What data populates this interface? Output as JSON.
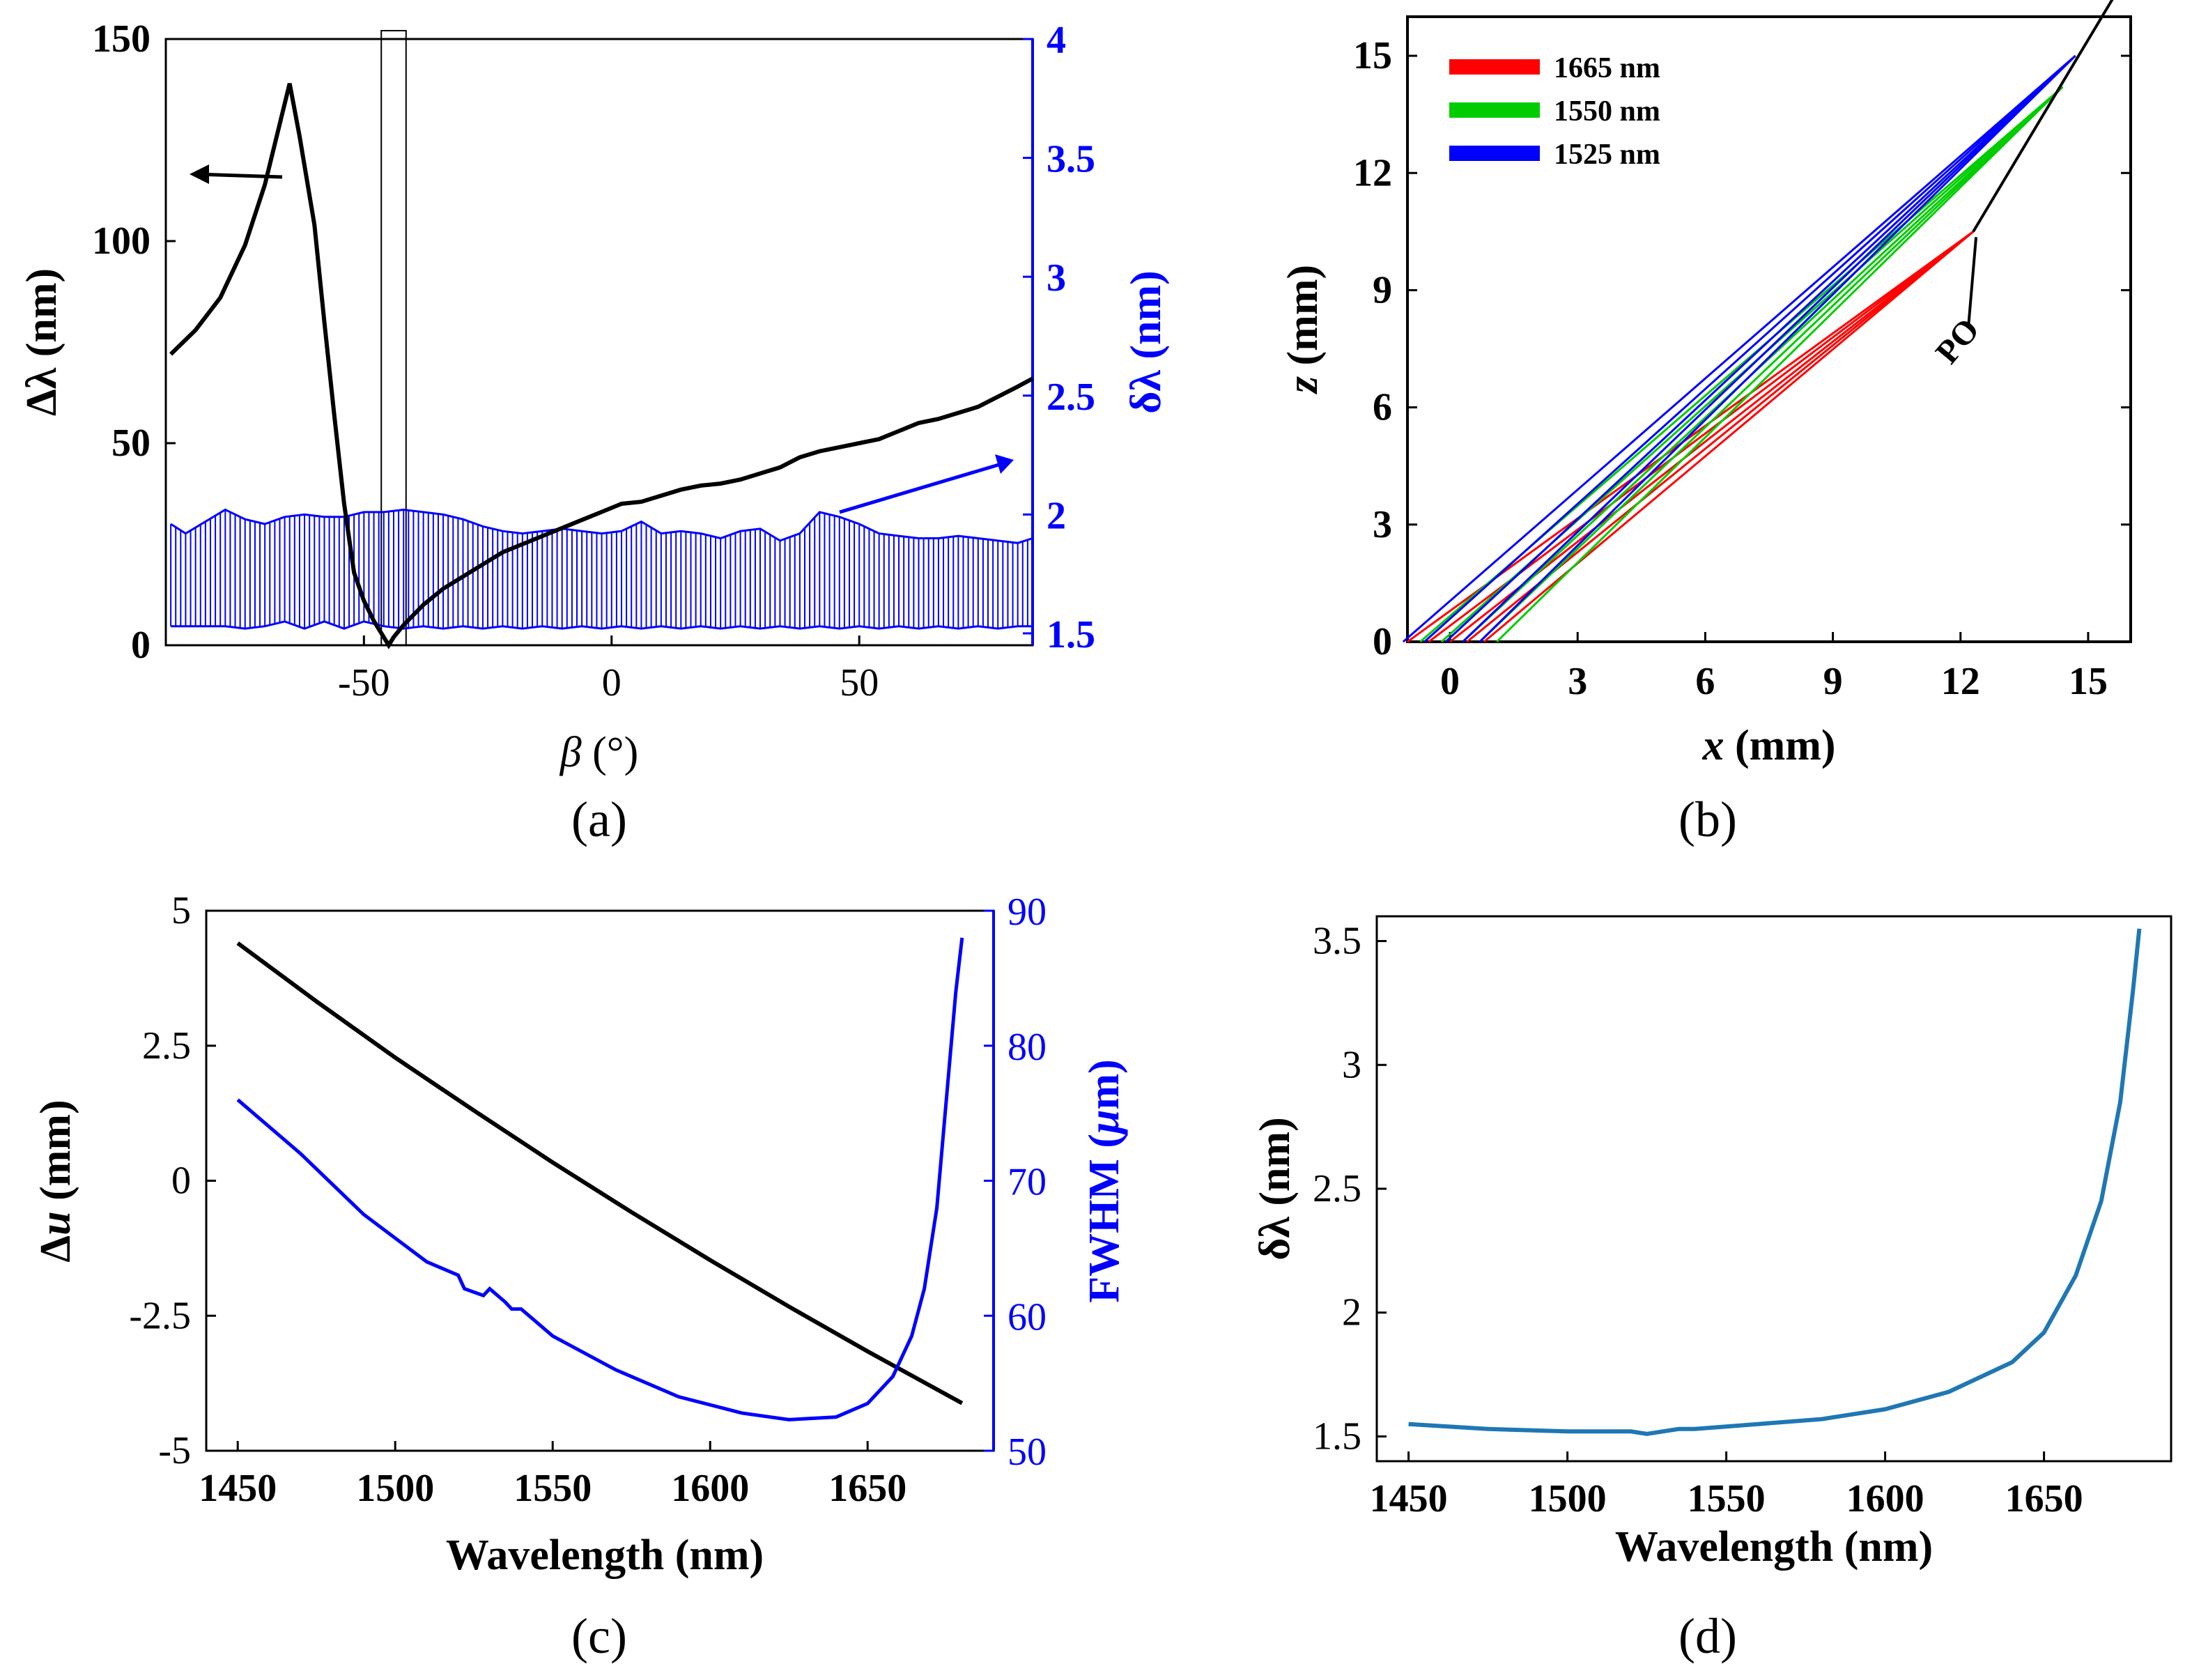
{
  "chart_data": [
    {
      "id": "a",
      "type": "line",
      "caption": "(a)",
      "xlabel_sym": "β",
      "xlabel_unit": " (°)",
      "ylabel_left": "Δλ (nm)",
      "ylabel_right": "δλ (nm)",
      "xlim": [
        -90,
        85
      ],
      "ylim_left": [
        0,
        150
      ],
      "ylim_right": [
        1.45,
        4
      ],
      "xticks": [
        -50,
        0,
        50
      ],
      "yticks_left": [
        0,
        50,
        100,
        150
      ],
      "yticks_right": [
        "1.5",
        "2",
        "2.5",
        "3",
        "3.5",
        "4"
      ],
      "colors": {
        "left": "#000000",
        "right": "#0000ff"
      },
      "series": [
        {
          "name": "Δλ",
          "axis": "left",
          "x": [
            -89,
            -84,
            -79,
            -74,
            -70,
            -67,
            -65,
            -63,
            -60,
            -58,
            -56,
            -54,
            -52,
            -50,
            -48,
            -46,
            -45,
            -44,
            -42,
            -38,
            -34,
            -30,
            -26,
            -22,
            -18,
            -14,
            -10,
            -6,
            -2,
            2,
            6,
            10,
            14,
            18,
            22,
            26,
            30,
            34,
            38,
            42,
            46,
            50,
            54,
            58,
            62,
            66,
            70,
            74,
            78,
            82,
            85
          ],
          "y": [
            72,
            78,
            86,
            99,
            114,
            129,
            139,
            126,
            104,
            80,
            57,
            35,
            18,
            11,
            6,
            2,
            0,
            2,
            5,
            10,
            14,
            17,
            20,
            23,
            25,
            27,
            29,
            31,
            33,
            35,
            35.5,
            37,
            38.5,
            39.5,
            40,
            41,
            42.5,
            44,
            46.5,
            48,
            49,
            50,
            51,
            53,
            55,
            56,
            57.5,
            59,
            61.5,
            64,
            66
          ]
        },
        {
          "name": "δλ",
          "axis": "right",
          "x": [
            -89,
            -86,
            -82,
            -78,
            -74,
            -70,
            -66,
            -62,
            -58,
            -54,
            -50,
            -46,
            -42,
            -38,
            -34,
            -30,
            -26,
            -22,
            -18,
            -14,
            -10,
            -6,
            -2,
            2,
            6,
            10,
            14,
            18,
            22,
            26,
            30,
            34,
            38,
            42,
            46,
            50,
            54,
            58,
            62,
            66,
            70,
            74,
            78,
            82,
            85
          ],
          "upper": [
            1.96,
            1.92,
            1.97,
            2.02,
            1.98,
            1.96,
            1.99,
            2.0,
            1.99,
            1.99,
            2.01,
            2.01,
            2.02,
            2.01,
            2.0,
            1.98,
            1.95,
            1.93,
            1.92,
            1.93,
            1.94,
            1.93,
            1.92,
            1.93,
            1.97,
            1.92,
            1.93,
            1.92,
            1.9,
            1.93,
            1.94,
            1.89,
            1.92,
            2.01,
            1.99,
            1.96,
            1.92,
            1.91,
            1.9,
            1.9,
            1.91,
            1.9,
            1.89,
            1.88,
            1.9
          ],
          "lower": [
            1.53,
            1.53,
            1.53,
            1.53,
            1.52,
            1.53,
            1.55,
            1.52,
            1.55,
            1.52,
            1.55,
            1.53,
            1.52,
            1.53,
            1.52,
            1.53,
            1.52,
            1.53,
            1.52,
            1.53,
            1.52,
            1.53,
            1.52,
            1.53,
            1.52,
            1.53,
            1.52,
            1.53,
            1.52,
            1.53,
            1.52,
            1.53,
            1.52,
            1.53,
            1.52,
            1.53,
            1.52,
            1.53,
            1.52,
            1.53,
            1.52,
            1.53,
            1.52,
            1.53,
            1.53
          ]
        }
      ],
      "annotations": {
        "highlight_x": [
          -46.5,
          -41.5
        ],
        "left_arrow": "points to Δλ axis",
        "right_arrow": "points to δλ axis"
      }
    },
    {
      "id": "b",
      "type": "line",
      "caption": "(b)",
      "xlabel_sym": "x",
      "xlabel_unit": " (mm)",
      "ylabel_sym": "z",
      "ylabel_unit": " (mm)",
      "xlim": [
        -1,
        16
      ],
      "ylim": [
        0,
        16
      ],
      "xticks": [
        0,
        3,
        6,
        9,
        12,
        15
      ],
      "yticks": [
        0,
        3,
        6,
        9,
        12,
        15
      ],
      "legend": [
        {
          "label": "1665 nm",
          "color": "#ff0000"
        },
        {
          "label": "1550 nm",
          "color": "#00cc00"
        },
        {
          "label": "1525 nm",
          "color": "#0000ff"
        }
      ],
      "rays": [
        {
          "color": "#ff0000",
          "starts": [
            -1.0,
            -0.5,
            0.0,
            0.4,
            0.8
          ],
          "end": [
            12.3,
            10.5
          ]
        },
        {
          "color": "#00cc00",
          "starts": [
            -0.7,
            -0.2,
            0.3,
            0.7,
            1.1
          ],
          "end": [
            14.4,
            14.2
          ]
        },
        {
          "color": "#0000ff",
          "starts": [
            -1.1,
            -0.6,
            -0.1,
            0.3,
            0.7
          ],
          "end": [
            14.7,
            15.0
          ]
        }
      ],
      "po_line": {
        "from": [
          15.6,
          16.5
        ],
        "to": [
          12.3,
          10.5
        ]
      },
      "po_label": "PO"
    },
    {
      "id": "c",
      "type": "line",
      "caption": "(c)",
      "xlabel": "Wavelength (nm)",
      "ylabel_left_sym": "Δ",
      "ylabel_left_var": "u",
      "ylabel_left_unit": " (mm)",
      "ylabel_right_pre": "FWHM (",
      "ylabel_right_sym": "μ",
      "ylabel_right_post": "m)",
      "xlim": [
        1440,
        1690
      ],
      "ylim_left": [
        -5,
        5
      ],
      "ylim_right": [
        50,
        90
      ],
      "xticks": [
        1450,
        1500,
        1550,
        1600,
        1650
      ],
      "yticks_left": [
        "-5",
        "-2.5",
        "0",
        "2.5",
        "5"
      ],
      "yticks_right": [
        "50",
        "60",
        "70",
        "80",
        "90"
      ],
      "series": [
        {
          "name": "Δu",
          "axis": "left",
          "color": "#000000",
          "x": [
            1450,
            1475,
            1500,
            1525,
            1550,
            1575,
            1600,
            1625,
            1650,
            1680
          ],
          "y": [
            4.4,
            3.32,
            2.28,
            1.3,
            0.34,
            -0.58,
            -1.47,
            -2.33,
            -3.16,
            -4.12
          ]
        },
        {
          "name": "FWHM",
          "axis": "right",
          "color": "#0000ff",
          "x": [
            1450,
            1470,
            1490,
            1510,
            1520,
            1522,
            1528,
            1530,
            1535,
            1537,
            1540,
            1550,
            1570,
            1590,
            1610,
            1625,
            1640,
            1650,
            1658,
            1664,
            1668,
            1672,
            1675,
            1678,
            1680
          ],
          "y": [
            76,
            72,
            67.5,
            64,
            63,
            62,
            61.5,
            62,
            61,
            60.5,
            60.5,
            58.5,
            56,
            54,
            52.8,
            52.3,
            52.5,
            53.5,
            55.5,
            58.5,
            62,
            68,
            76,
            84,
            88
          ]
        }
      ]
    },
    {
      "id": "d",
      "type": "line",
      "caption": "(d)",
      "xlabel": "Wavelength (nm)",
      "ylabel": "δλ (nm)",
      "xlim": [
        1440,
        1690
      ],
      "ylim": [
        1.4,
        3.6
      ],
      "xticks": [
        1450,
        1500,
        1550,
        1600,
        1650
      ],
      "yticks": [
        "1.5",
        "2",
        "2.5",
        "3",
        "3.5"
      ],
      "series": [
        {
          "name": "δλ",
          "color": "#1f77b4",
          "x": [
            1450,
            1475,
            1500,
            1520,
            1525,
            1530,
            1535,
            1540,
            1560,
            1580,
            1600,
            1620,
            1640,
            1650,
            1660,
            1668,
            1674,
            1678,
            1680
          ],
          "y": [
            1.55,
            1.53,
            1.52,
            1.52,
            1.51,
            1.52,
            1.53,
            1.53,
            1.55,
            1.57,
            1.61,
            1.68,
            1.8,
            1.92,
            2.15,
            2.45,
            2.85,
            3.3,
            3.55
          ]
        }
      ]
    }
  ]
}
